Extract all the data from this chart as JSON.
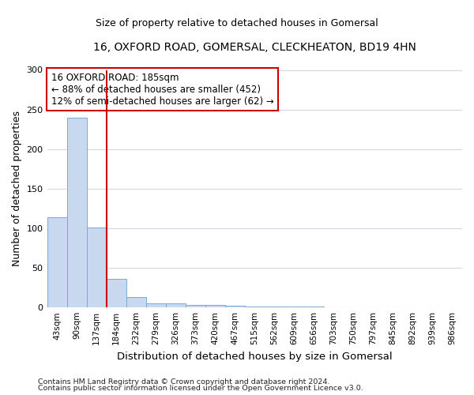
{
  "title": "16, OXFORD ROAD, GOMERSAL, CLECKHEATON, BD19 4HN",
  "subtitle": "Size of property relative to detached houses in Gomersal",
  "xlabel": "Distribution of detached houses by size in Gomersal",
  "ylabel": "Number of detached properties",
  "bar_values": [
    114,
    240,
    101,
    36,
    13,
    5,
    5,
    3,
    3,
    2,
    1,
    1,
    1,
    1,
    0,
    0,
    0,
    0,
    0,
    0,
    0
  ],
  "bar_labels": [
    "43sqm",
    "90sqm",
    "137sqm",
    "184sqm",
    "232sqm",
    "279sqm",
    "326sqm",
    "373sqm",
    "420sqm",
    "467sqm",
    "515sqm",
    "562sqm",
    "609sqm",
    "656sqm",
    "703sqm",
    "750sqm",
    "797sqm",
    "845sqm",
    "892sqm",
    "939sqm",
    "986sqm"
  ],
  "bar_color": "#c8d8ee",
  "bar_edgecolor": "#7aaad0",
  "vline_color": "#cc0000",
  "annotation_title": "16 OXFORD ROAD: 185sqm",
  "annotation_line1": "← 88% of detached houses are smaller (452)",
  "annotation_line2": "12% of semi-detached houses are larger (62) →",
  "ylim": [
    0,
    300
  ],
  "yticks": [
    0,
    50,
    100,
    150,
    200,
    250,
    300
  ],
  "footer1": "Contains HM Land Registry data © Crown copyright and database right 2024.",
  "footer2": "Contains public sector information licensed under the Open Government Licence v3.0.",
  "bg_color": "#ffffff",
  "grid_color": "#d0d8e8"
}
